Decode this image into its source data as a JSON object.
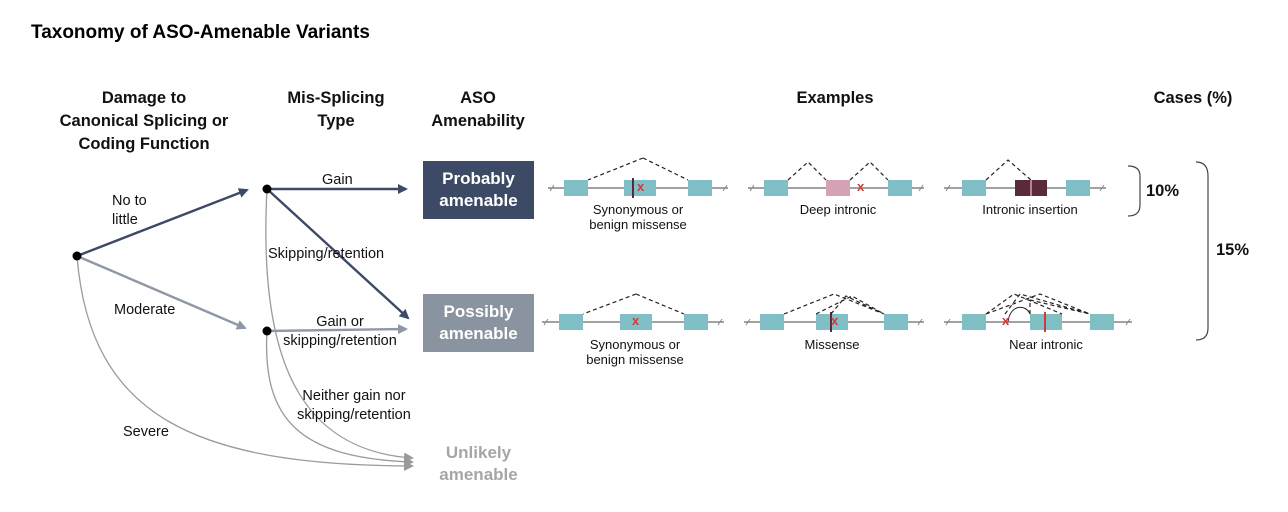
{
  "title": "Taxonomy of ASO-Amenable Variants",
  "columns": {
    "damage": [
      "Damage to",
      "Canonical Splicing or",
      "Coding Function"
    ],
    "missplicing": [
      "Mis-Splicing",
      "Type"
    ],
    "aso": [
      "ASO",
      "Amenability"
    ],
    "examples": "Examples",
    "cases": "Cases (%)"
  },
  "damage_levels": {
    "no_to_little": [
      "No to",
      "little"
    ],
    "moderate": "Moderate",
    "severe": "Severe"
  },
  "missplicing_types": {
    "gain": "Gain",
    "skipping_retention": "Skipping/retention",
    "gain_or_skipping": [
      "Gain or",
      "skipping/retention"
    ],
    "neither": [
      "Neither gain nor",
      "skipping/retention"
    ]
  },
  "amenability": {
    "probably": [
      "Probably",
      "amenable"
    ],
    "possibly": [
      "Possibly",
      "amenable"
    ],
    "unlikely": [
      "Unlikely",
      "amenable"
    ]
  },
  "examples": {
    "row1": [
      [
        "Synonymous or",
        "benign missense"
      ],
      [
        "Deep intronic"
      ],
      [
        "Intronic insertion"
      ]
    ],
    "row2": [
      [
        "Synonymous or",
        "benign missense"
      ],
      [
        "Missense"
      ],
      [
        "Near intronic"
      ]
    ]
  },
  "variant_mark": "x",
  "cases": {
    "probably": "10%",
    "total": "15%"
  },
  "colors": {
    "probably_box": "#3d4a66",
    "possibly_box": "#8a93a0",
    "unlikely_text": "#a6a6a6",
    "arrow_dark": "#3d4a66",
    "arrow_light": "#8f98a6",
    "exon": "#7fbfc5",
    "pseudo_exon": "#d4a2b5",
    "insertion": "#5a2a3a",
    "variant": "#d23a3a"
  }
}
